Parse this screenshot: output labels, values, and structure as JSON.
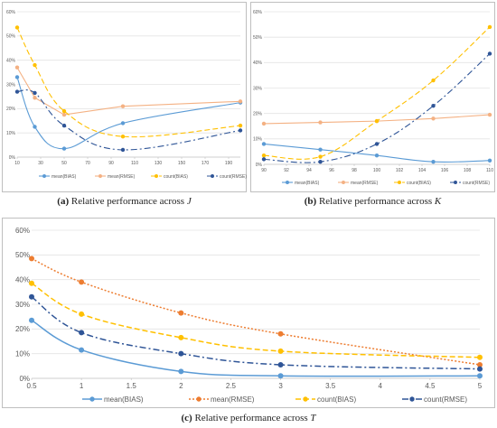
{
  "chart_data": [
    {
      "id": "a",
      "type": "line",
      "x": [
        10,
        25,
        50,
        100,
        200
      ],
      "xticks": [
        10,
        30,
        50,
        70,
        90,
        110,
        130,
        150,
        170,
        190
      ],
      "xlim": [
        10,
        200
      ],
      "ylim": [
        0,
        60
      ],
      "yticks": [
        0,
        10,
        20,
        30,
        40,
        50,
        60
      ],
      "ytick_suffix": "%",
      "series": [
        {
          "name": "mean(BIAS)",
          "values": [
            33,
            12.5,
            3.5,
            14,
            22.5
          ],
          "color": "#5b9bd5",
          "style": "solid",
          "smooth": true
        },
        {
          "name": "mean(RMSE)",
          "values": [
            37,
            24.5,
            17.5,
            21,
            23
          ],
          "color": "#f4b183",
          "style": "solid",
          "smooth": false
        },
        {
          "name": "count(BIAS)",
          "values": [
            53.5,
            38,
            19,
            8.5,
            13
          ],
          "color": "#ffc000",
          "style": "dashed",
          "smooth": true
        },
        {
          "name": "count(RMSE)",
          "values": [
            27,
            26.5,
            13,
            3,
            11
          ],
          "color": "#2f5597",
          "style": "dashdot",
          "smooth": true
        }
      ],
      "caption_label": "(a)",
      "caption_text": "Relative performance across",
      "caption_var": "J",
      "grid": true,
      "legend": "bottom"
    },
    {
      "id": "b",
      "type": "line",
      "x": [
        90,
        95,
        100,
        105,
        110
      ],
      "xticks": [
        90,
        92,
        94,
        96,
        98,
        100,
        102,
        104,
        106,
        108,
        110
      ],
      "xlim": [
        90,
        110
      ],
      "ylim": [
        0,
        60
      ],
      "yticks": [
        0,
        10,
        20,
        30,
        40,
        50,
        60
      ],
      "ytick_suffix": "%",
      "series": [
        {
          "name": "mean(BIAS)",
          "values": [
            8,
            5.8,
            3.5,
            1,
            1.5
          ],
          "color": "#5b9bd5",
          "style": "solid",
          "smooth": true
        },
        {
          "name": "mean(RMSE)",
          "values": [
            16,
            16.5,
            17,
            18,
            19.5
          ],
          "color": "#f4b183",
          "style": "solid",
          "smooth": false
        },
        {
          "name": "count(BIAS)",
          "values": [
            3.5,
            3,
            17,
            33,
            54
          ],
          "color": "#ffc000",
          "style": "dashed",
          "smooth": true
        },
        {
          "name": "count(RMSE)",
          "values": [
            2,
            1,
            8,
            23,
            43.5
          ],
          "color": "#2f5597",
          "style": "dashdot",
          "smooth": true
        }
      ],
      "caption_label": "(b)",
      "caption_text": "Relative performance across",
      "caption_var": "K",
      "grid": true,
      "legend": "bottom"
    },
    {
      "id": "c",
      "type": "line",
      "x": [
        0.5,
        1,
        2,
        3,
        5
      ],
      "xticks": [
        0.5,
        1,
        1.5,
        2,
        2.5,
        3,
        3.5,
        4,
        4.5,
        5
      ],
      "xlim": [
        0.5,
        5
      ],
      "ylim": [
        0,
        60
      ],
      "yticks": [
        0,
        10,
        20,
        30,
        40,
        50,
        60
      ],
      "ytick_suffix": "%",
      "series": [
        {
          "name": "mean(BIAS)",
          "values": [
            23.5,
            11.5,
            2.8,
            1,
            1
          ],
          "color": "#5b9bd5",
          "style": "solid",
          "smooth": true
        },
        {
          "name": "mean(RMSE)",
          "values": [
            48.5,
            39,
            26.5,
            18,
            5.5
          ],
          "color": "#ed7d31",
          "style": "dotted",
          "smooth": true
        },
        {
          "name": "count(BIAS)",
          "values": [
            38.5,
            26,
            16.5,
            11,
            8.5
          ],
          "color": "#ffc000",
          "style": "dashed",
          "smooth": true
        },
        {
          "name": "count(RMSE)",
          "values": [
            33,
            18.5,
            10,
            5.5,
            3.8
          ],
          "color": "#2f5597",
          "style": "dashdot",
          "smooth": true
        }
      ],
      "caption_label": "(c)",
      "caption_text": "Relative performance across",
      "caption_var": "T",
      "grid": true,
      "legend": "bottom"
    }
  ]
}
